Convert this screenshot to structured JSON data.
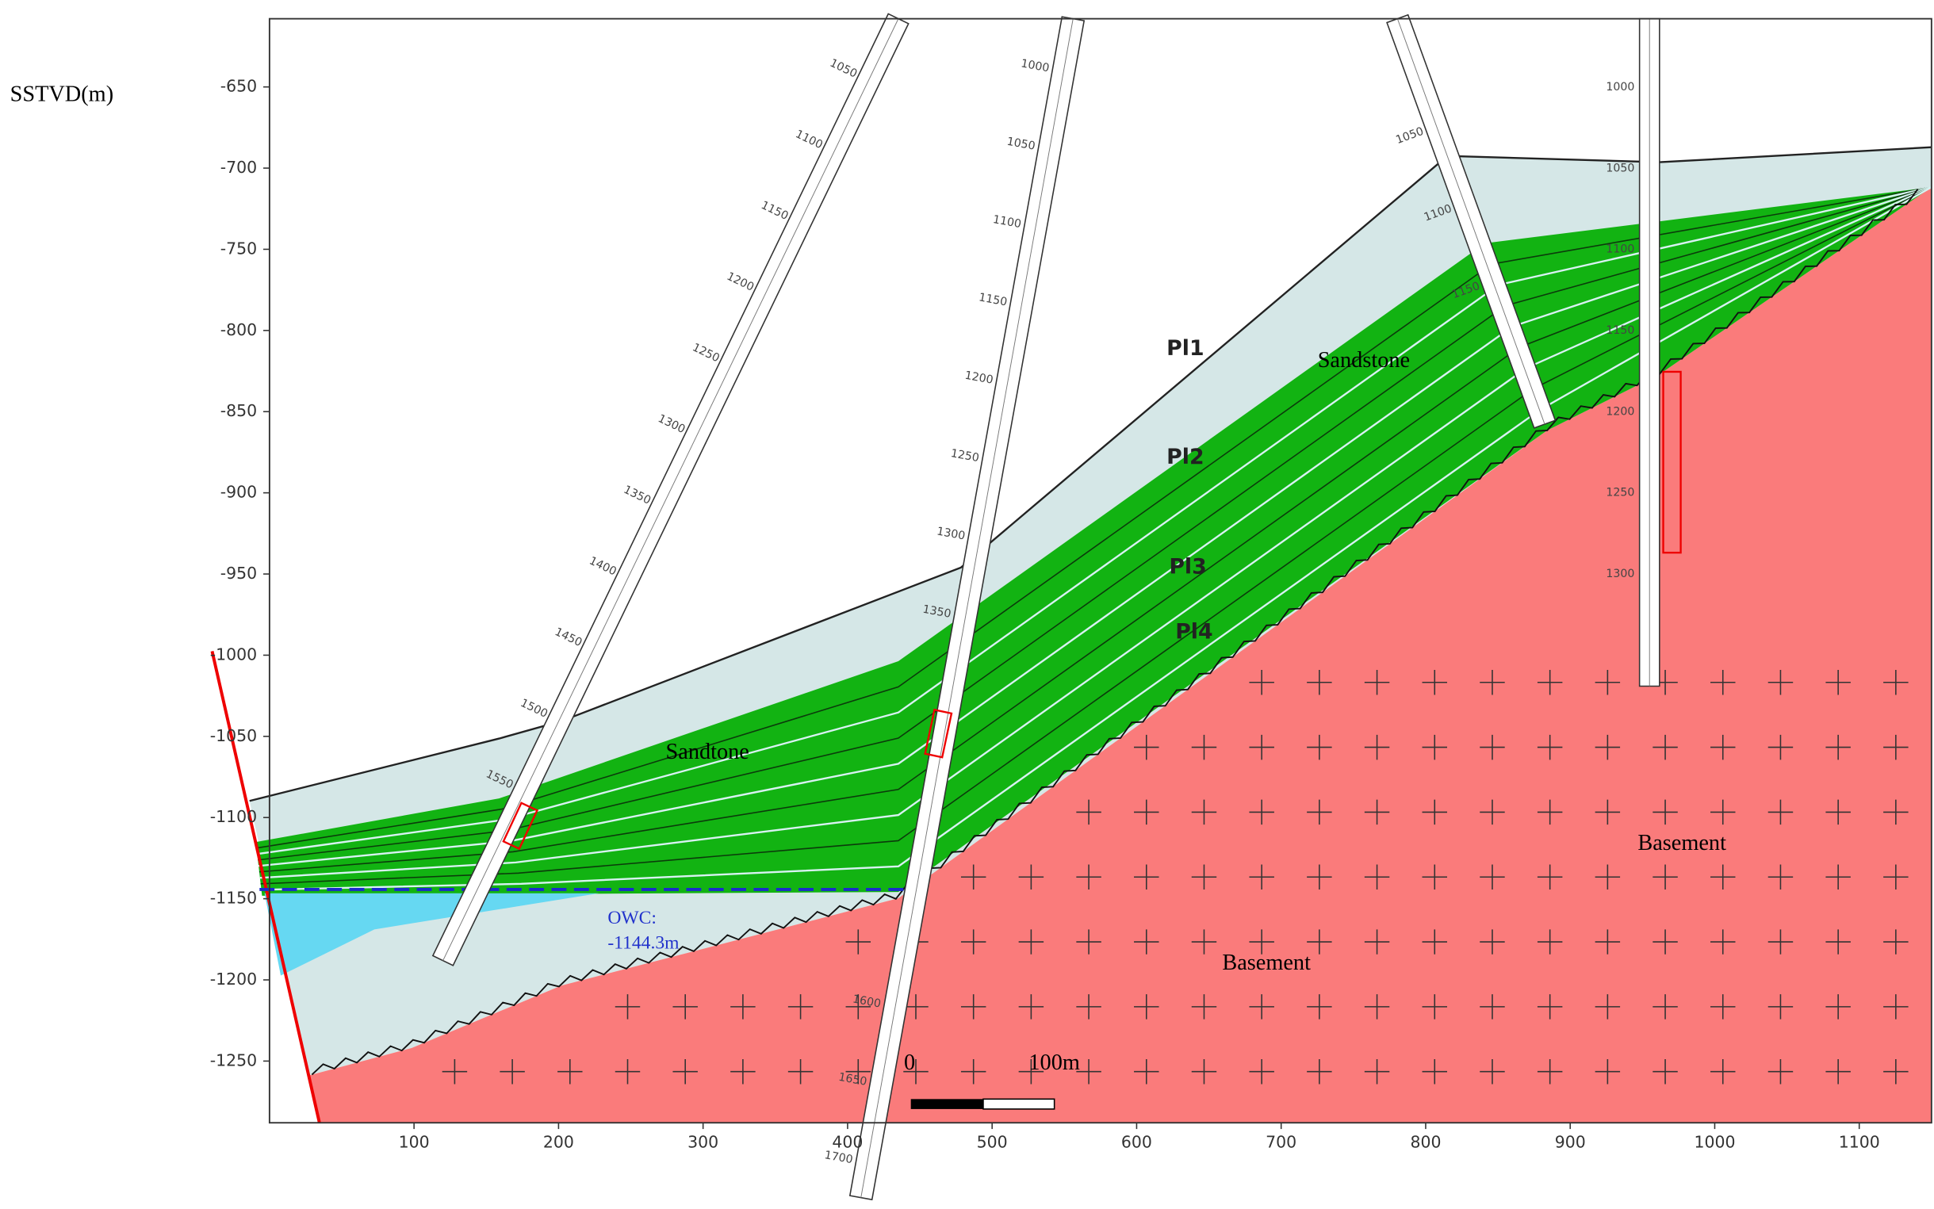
{
  "axes": {
    "y_label": "SSTVD(m)",
    "xlim": [
      0,
      1150
    ],
    "ylim": [
      -1288,
      -608
    ],
    "xticks": [
      100,
      200,
      300,
      400,
      500,
      600,
      700,
      800,
      900,
      1000,
      1100
    ],
    "yticks": [
      -650,
      -700,
      -750,
      -800,
      -850,
      -900,
      -950,
      -1000,
      -1050,
      -1100,
      -1150,
      -1200,
      -1250
    ]
  },
  "layers": [
    "Pl1",
    "Pl2",
    "Pl3",
    "Pl4"
  ],
  "lithology": {
    "upper_sand": "Sandstone",
    "lower_sand": "Sandtone",
    "basement_right": "Basement",
    "basement_center": "Basement"
  },
  "owc": {
    "label": "OWC:",
    "depth_label": "-1144.3m",
    "depth": -1144.3
  },
  "scale_bar": {
    "start": "0",
    "end": "100m"
  },
  "wells": [
    {
      "depth_labels": [
        1050,
        1100,
        1150,
        1200,
        1250,
        1300,
        1350,
        1400,
        1450,
        1500,
        1550
      ]
    },
    {
      "depth_labels": [
        1000,
        1050,
        1100,
        1150,
        1200,
        1250,
        1300,
        1350,
        1600,
        1650,
        1700
      ]
    },
    {
      "depth_labels": [
        1050,
        1100,
        1150
      ]
    },
    {
      "depth_labels": [
        1000,
        1050,
        1100,
        1150,
        1200,
        1250,
        1300
      ]
    }
  ]
}
